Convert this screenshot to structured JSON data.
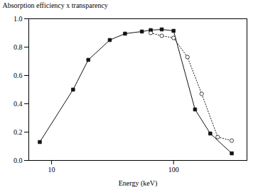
{
  "chart_data": {
    "type": "line",
    "xlabel": "Energy (keV)",
    "ylabel": "Absorption efficiency x transparency",
    "log": "x",
    "xlim": [
      6.5,
      400
    ],
    "ylim": [
      0.0,
      1.0
    ],
    "xticks": [
      10,
      100
    ],
    "yticks": [
      {
        "value": 0.0,
        "label": "0.0"
      },
      0.2,
      0.4,
      0.6,
      0.8,
      {
        "value": 1.0,
        "label": "1.0"
      }
    ],
    "grid": false,
    "series": [
      {
        "x": [
          8,
          15,
          20,
          30,
          40,
          55,
          65,
          80,
          100,
          150,
          200,
          300
        ],
        "values": [
          0.13,
          0.5,
          0.71,
          0.85,
          0.895,
          0.91,
          0.92,
          0.925,
          0.915,
          0.36,
          0.19,
          0.05
        ],
        "color": "#111111",
        "marker": "square",
        "line_style": "solid"
      },
      {
        "x": [
          65,
          80,
          100,
          130,
          170,
          230,
          300
        ],
        "values": [
          0.9,
          0.88,
          0.865,
          0.73,
          0.47,
          0.165,
          0.14
        ],
        "color": "#111111",
        "marker": "open_circle",
        "line_style": "dotted"
      }
    ]
  }
}
